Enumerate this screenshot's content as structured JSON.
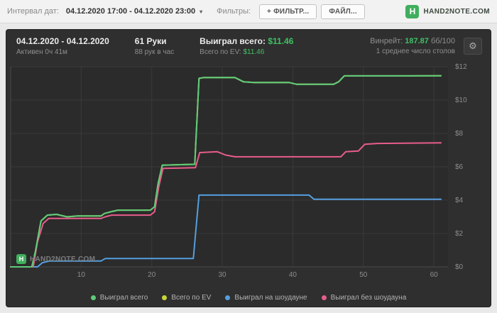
{
  "topbar": {
    "interval_label": "Интервал дат:",
    "date_range": "04.12.2020 17:00 - 04.12.2020 23:00",
    "filters_label": "Фильтры:",
    "filter_button": "+ ФИЛЬТР...",
    "file_button": "ФАЙЛ...",
    "brand_letter": "H",
    "brand_text": "HAND2NOTE.COM"
  },
  "icons": {
    "caret_down": "▾",
    "gear": "⚙"
  },
  "panel": {
    "header": {
      "date_range": "04.12.2020 - 04.12.2020",
      "active_time": "Активен 0ч 41м",
      "hands": "61 Руки",
      "hands_per_hour": "88 рук в час",
      "won_label": "Выиграл всего:",
      "won_value": "$11.46",
      "ev_label": "Всего по EV:",
      "ev_value": "$11.46",
      "winrate_label": "Винрейт:",
      "winrate_value": "187.87",
      "winrate_unit": "бб/100",
      "avg_tables": "1 среднее число столов"
    },
    "watermark_letter": "H",
    "watermark_text": "HAND2NOTE.COM"
  },
  "colors": {
    "accent_green": "#3fc164",
    "panel_bg": "#2f2f2f",
    "plot_bg": "#2b2b2b"
  },
  "chart_data": {
    "type": "line",
    "title": "",
    "xlabel": "",
    "ylabel": "",
    "xlim": [
      0,
      62
    ],
    "ylim": [
      0,
      12
    ],
    "grid": true,
    "grid_color": "#3a3a3a",
    "axis_line_color": "#4a4a4a",
    "axis_text_color": "#8d8d8d",
    "legend_position": "bottom",
    "x_ticks": [
      10,
      20,
      30,
      40,
      50,
      60
    ],
    "y_ticks": [
      {
        "v": 0,
        "label": "$0"
      },
      {
        "v": 2,
        "label": "$2"
      },
      {
        "v": 4,
        "label": "$4"
      },
      {
        "v": 6,
        "label": "$6"
      },
      {
        "v": 8,
        "label": "$8"
      },
      {
        "v": 10,
        "label": "$10"
      },
      {
        "v": 12,
        "label": "$12"
      }
    ],
    "draw_order": [
      1,
      2,
      3,
      0
    ],
    "series": [
      {
        "name": "Выиграл всего",
        "color": "#5ecb7b",
        "points": [
          [
            0,
            0
          ],
          [
            3.0,
            0
          ],
          [
            3.5,
            0.9
          ],
          [
            4.3,
            2.75
          ],
          [
            5.2,
            3.1
          ],
          [
            6.5,
            3.15
          ],
          [
            8,
            3.0
          ],
          [
            9.5,
            3.05
          ],
          [
            12.8,
            3.05
          ],
          [
            13.3,
            3.2
          ],
          [
            14.2,
            3.3
          ],
          [
            15.2,
            3.4
          ],
          [
            19.8,
            3.4
          ],
          [
            20.4,
            3.6
          ],
          [
            20.9,
            5.0
          ],
          [
            21.5,
            6.1
          ],
          [
            26.1,
            6.15
          ],
          [
            26.7,
            11.3
          ],
          [
            27.4,
            11.35
          ],
          [
            31.8,
            11.35
          ],
          [
            33,
            11.1
          ],
          [
            34.5,
            11.05
          ],
          [
            39.5,
            11.05
          ],
          [
            40.5,
            10.95
          ],
          [
            45.8,
            10.95
          ],
          [
            46.5,
            11.1
          ],
          [
            47.3,
            11.45
          ],
          [
            56,
            11.45
          ],
          [
            61,
            11.46
          ]
        ]
      },
      {
        "name": "Всего по EV",
        "color": "#c9d636",
        "points": [
          [
            0,
            0
          ],
          [
            3.0,
            0
          ],
          [
            3.5,
            0.9
          ],
          [
            4.3,
            2.75
          ],
          [
            5.2,
            3.1
          ],
          [
            6.5,
            3.15
          ],
          [
            8,
            3.0
          ],
          [
            9.5,
            3.05
          ],
          [
            12.8,
            3.05
          ],
          [
            13.3,
            3.2
          ],
          [
            14.2,
            3.3
          ],
          [
            15.2,
            3.4
          ],
          [
            19.8,
            3.4
          ],
          [
            20.4,
            3.6
          ],
          [
            20.9,
            5.0
          ],
          [
            21.5,
            6.1
          ],
          [
            26.1,
            6.15
          ],
          [
            26.7,
            11.3
          ],
          [
            27.4,
            11.35
          ],
          [
            31.8,
            11.35
          ],
          [
            33,
            11.1
          ],
          [
            34.5,
            11.05
          ],
          [
            39.5,
            11.05
          ],
          [
            40.5,
            10.95
          ],
          [
            45.8,
            10.95
          ],
          [
            46.5,
            11.1
          ],
          [
            47.3,
            11.45
          ],
          [
            56,
            11.45
          ],
          [
            61,
            11.46
          ]
        ]
      },
      {
        "name": "Выиграл на шоудауне",
        "color": "#549ee0",
        "points": [
          [
            0,
            0
          ],
          [
            3.8,
            0
          ],
          [
            4.5,
            0.25
          ],
          [
            5.5,
            0.35
          ],
          [
            12.8,
            0.35
          ],
          [
            13.4,
            0.5
          ],
          [
            25.9,
            0.5
          ],
          [
            26.7,
            4.3
          ],
          [
            27.2,
            4.3
          ],
          [
            42.3,
            4.3
          ],
          [
            43.0,
            4.05
          ],
          [
            61,
            4.05
          ]
        ]
      },
      {
        "name": "Выиграл без шоудауна",
        "color": "#e85d8a",
        "points": [
          [
            0,
            0
          ],
          [
            3.2,
            0
          ],
          [
            3.8,
            1.5
          ],
          [
            4.6,
            2.6
          ],
          [
            5.4,
            2.9
          ],
          [
            12.8,
            2.9
          ],
          [
            13.4,
            3.0
          ],
          [
            14.3,
            3.1
          ],
          [
            19.8,
            3.1
          ],
          [
            20.4,
            3.3
          ],
          [
            21.0,
            4.8
          ],
          [
            21.6,
            5.9
          ],
          [
            26.2,
            5.95
          ],
          [
            26.8,
            6.85
          ],
          [
            29.3,
            6.9
          ],
          [
            30.5,
            6.7
          ],
          [
            31.8,
            6.6
          ],
          [
            46.8,
            6.6
          ],
          [
            47.5,
            6.9
          ],
          [
            49.3,
            6.95
          ],
          [
            50.2,
            7.35
          ],
          [
            52,
            7.4
          ],
          [
            61,
            7.44
          ]
        ]
      }
    ]
  }
}
